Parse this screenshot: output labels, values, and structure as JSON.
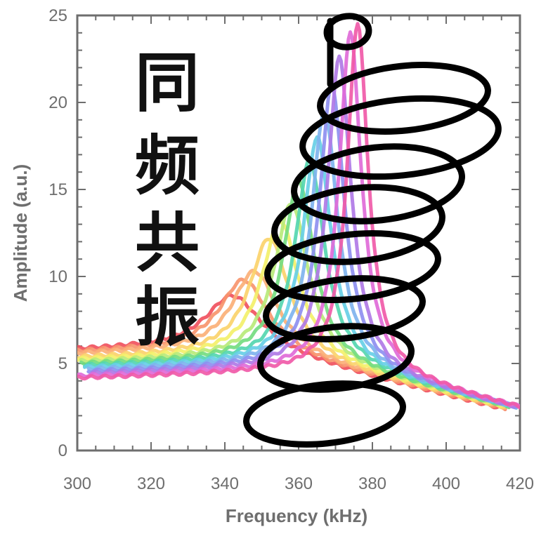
{
  "chart_data": {
    "type": "line",
    "title": "",
    "xlabel": "Frequency (kHz)",
    "ylabel": "Amplitude (a.u.)",
    "xlim": [
      300,
      420
    ],
    "ylim": [
      0,
      25
    ],
    "x_ticks": [
      "300",
      "320",
      "340",
      "360",
      "380",
      "400",
      "420"
    ],
    "y_ticks": [
      "0",
      "5",
      "10",
      "15",
      "20",
      "25"
    ],
    "grid": false,
    "legend": "none",
    "annotation_chars": [
      "同",
      "频",
      "共",
      "振"
    ],
    "annotation_drawing": "black-hand-drawn-spring",
    "series": [
      {
        "color": "#f0515e",
        "f0": 342,
        "peak": 8.9,
        "base": 6.0,
        "gamma": 19,
        "xmin": 300,
        "xmax": 416
      },
      {
        "color": "#f7956e",
        "f0": 345,
        "peak": 9.8,
        "base": 5.9,
        "gamma": 17,
        "xmin": 300,
        "xmax": 416
      },
      {
        "color": "#fbb077",
        "f0": 348,
        "peak": 10.3,
        "base": 5.8,
        "gamma": 16,
        "xmin": 300,
        "xmax": 416
      },
      {
        "color": "#fbd36b",
        "f0": 352,
        "peak": 12.2,
        "base": 5.6,
        "gamma": 14,
        "xmin": 300,
        "xmax": 416
      },
      {
        "color": "#f3f06a",
        "f0": 355,
        "peak": 13.2,
        "base": 5.5,
        "gamma": 13,
        "xmin": 300,
        "xmax": 416
      },
      {
        "color": "#b9ea7a",
        "f0": 358,
        "peak": 14.2,
        "base": 5.4,
        "gamma": 12,
        "xmin": 301,
        "xmax": 416
      },
      {
        "color": "#74dc80",
        "f0": 360,
        "peak": 15.5,
        "base": 5.3,
        "gamma": 11,
        "xmin": 301,
        "xmax": 417
      },
      {
        "color": "#55d6b0",
        "f0": 363,
        "peak": 16.7,
        "base": 5.2,
        "gamma": 10.5,
        "xmin": 302,
        "xmax": 417
      },
      {
        "color": "#67cfe6",
        "f0": 365,
        "peak": 18.0,
        "base": 5.1,
        "gamma": 10,
        "xmin": 302,
        "xmax": 418
      },
      {
        "color": "#7fb3ee",
        "f0": 367,
        "peak": 19.5,
        "base": 5.0,
        "gamma": 9.5,
        "xmin": 303,
        "xmax": 419
      },
      {
        "color": "#8e8ff0",
        "f0": 369,
        "peak": 21.0,
        "base": 4.9,
        "gamma": 9,
        "xmin": 303,
        "xmax": 419
      },
      {
        "color": "#b07ae6",
        "f0": 371,
        "peak": 22.6,
        "base": 4.8,
        "gamma": 8.5,
        "xmin": 304,
        "xmax": 420
      },
      {
        "color": "#e06bd8",
        "f0": 374,
        "peak": 24.0,
        "base": 4.7,
        "gamma": 8,
        "xmin": 300,
        "xmax": 421
      },
      {
        "color": "#f05aa8",
        "f0": 376,
        "peak": 24.6,
        "base": 4.6,
        "gamma": 7.5,
        "xmin": 300,
        "xmax": 421
      }
    ]
  }
}
